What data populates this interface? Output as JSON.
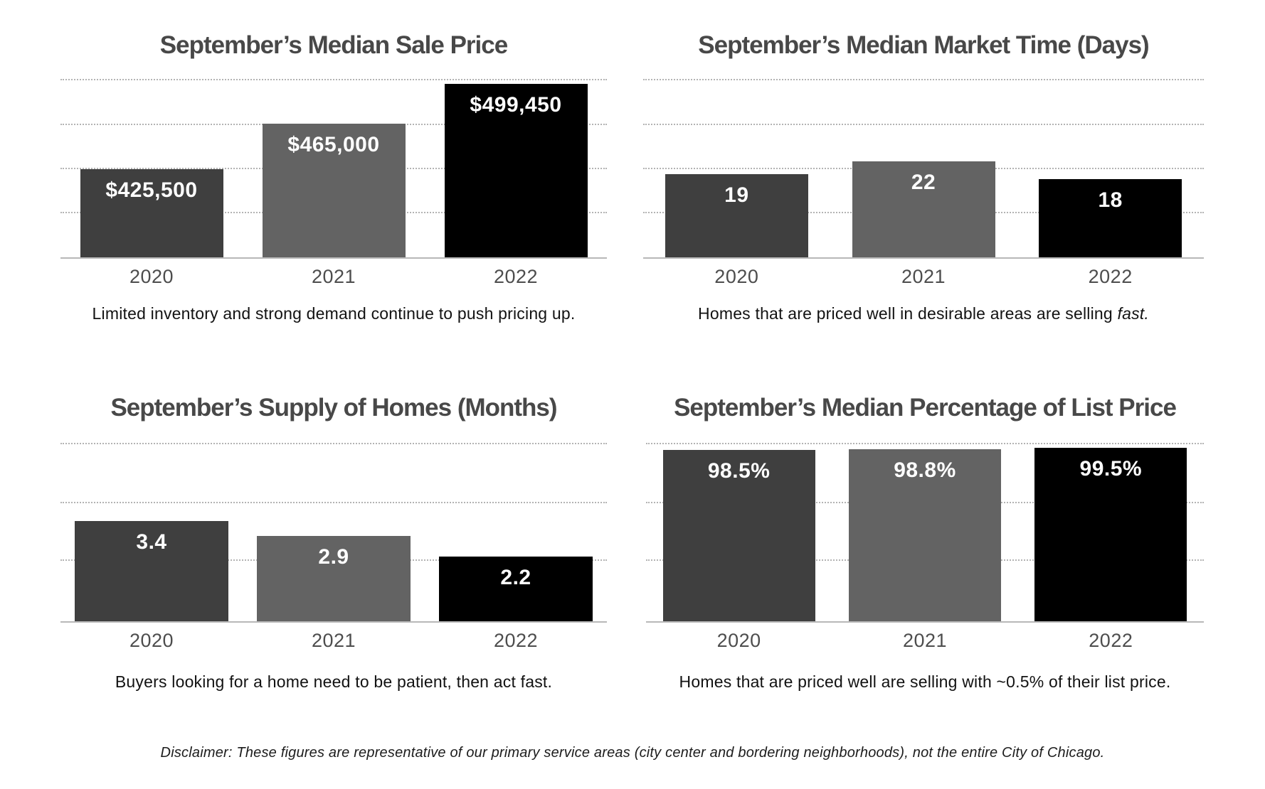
{
  "page": {
    "disclaimer": "Disclaimer: These figures are representative of our primary service areas (city center and bordering neighborhoods), not the entire City of Chicago."
  },
  "palette": {
    "bar_colors_by_year": [
      "#3f3f3f",
      "#636363",
      "#000000"
    ],
    "title_color": "#484848",
    "axis_label_color": "#4d4d4d",
    "gridline_color": "#b3b3b3",
    "axis_line_color": "#b8b8b8",
    "bar_label_color": "#ffffff",
    "background": "#ffffff"
  },
  "chart_data": [
    {
      "id": "median-sale-price",
      "type": "bar",
      "title": "September’s Median Sale Price",
      "categories": [
        "2020",
        "2021",
        "2022"
      ],
      "values": [
        425500,
        465000,
        499450
      ],
      "value_labels": [
        "$425,500",
        "$465,000",
        "$499,450"
      ],
      "ylim": [
        349500,
        513400
      ],
      "gridlines": "4 dotted horizontal lines, no y-axis tick labels",
      "legend": "none",
      "caption": [
        {
          "text": "Limited inventory and strong demand continue to push pricing up.",
          "italic": false
        }
      ]
    },
    {
      "id": "median-market-time-days",
      "type": "bar",
      "title": "September’s Median Market Time (Days)",
      "categories": [
        "2020",
        "2021",
        "2022"
      ],
      "values": [
        19,
        22,
        18
      ],
      "value_labels": [
        "19",
        "22",
        "18"
      ],
      "ylim": [
        0,
        43.5
      ],
      "gridlines": "4 dotted horizontal lines, no y-axis tick labels",
      "legend": "none",
      "caption": [
        {
          "text": "Homes that are priced well in desirable areas are selling ",
          "italic": false
        },
        {
          "text": "fast.",
          "italic": true
        }
      ]
    },
    {
      "id": "supply-of-homes-months",
      "type": "bar",
      "title": "September’s Supply of Homes (Months)",
      "categories": [
        "2020",
        "2021",
        "2022"
      ],
      "values": [
        3.4,
        2.9,
        2.2
      ],
      "value_labels": [
        "3.4",
        "2.9",
        "2.2"
      ],
      "ylim": [
        0,
        6.8
      ],
      "gridlines": "3 dotted horizontal lines, no y-axis tick labels",
      "legend": "none",
      "caption": [
        {
          "text": "Buyers looking for a home need to be patient, then act fast.",
          "italic": false
        }
      ]
    },
    {
      "id": "median-percentage-of-list-price",
      "type": "bar",
      "title": "September’s Median Percentage of List Price",
      "categories": [
        "2020",
        "2021",
        "2022"
      ],
      "values": [
        98.5,
        98.8,
        99.5
      ],
      "value_labels": [
        "98.5%",
        "98.8%",
        "99.5%"
      ],
      "ylim": [
        0,
        115.2
      ],
      "gridlines": "3 dotted horizontal lines, no y-axis tick labels",
      "legend": "none",
      "caption": [
        {
          "text": "Homes that are priced well are selling with ~0.5% of their list price.",
          "italic": false
        }
      ]
    }
  ]
}
